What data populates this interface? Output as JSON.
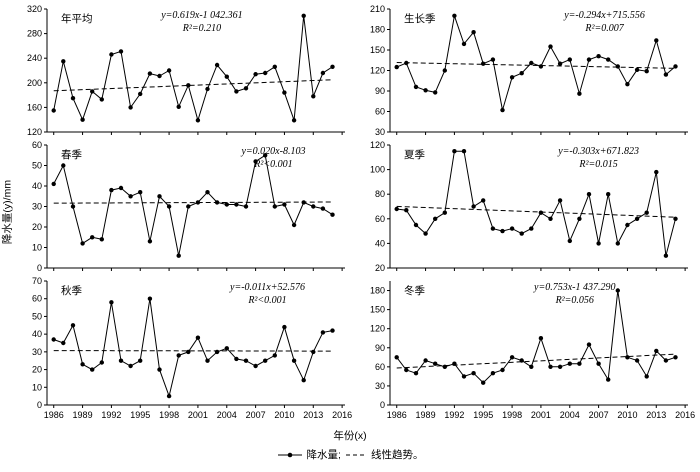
{
  "figure": {
    "ylabel": "降水量(y)/mm",
    "xlabel": "年份(x)",
    "legend": {
      "series1": "降水量;",
      "series2": "线性趋势。"
    },
    "accent_color": "#000000",
    "background_color": "#ffffff"
  },
  "chart_data": [
    {
      "type": "line",
      "title": "年平均",
      "equation": "y=0.619x-1 042.361",
      "r2": "R²=0.210",
      "x": [
        1986,
        1987,
        1988,
        1989,
        1990,
        1991,
        1992,
        1993,
        1994,
        1995,
        1996,
        1997,
        1998,
        1999,
        2000,
        2001,
        2002,
        2003,
        2004,
        2005,
        2006,
        2007,
        2008,
        2009,
        2010,
        2011,
        2012,
        2013,
        2014,
        2015
      ],
      "values": [
        155,
        235,
        175,
        140,
        186,
        173,
        246,
        251,
        160,
        182,
        215,
        211,
        220,
        161,
        196,
        139,
        190,
        229,
        210,
        186,
        191,
        214,
        216,
        226,
        184,
        139,
        309,
        178,
        216,
        226
      ],
      "trend": {
        "slope": 0.619,
        "intercept": -1042.361
      },
      "ylim": [
        120,
        320
      ],
      "yticks": [
        120,
        160,
        200,
        240,
        280,
        320
      ],
      "xlim": [
        1985.3,
        2016.3
      ],
      "xticks": [
        1986,
        1989,
        1992,
        1995,
        1998,
        2001,
        2004,
        2007,
        2010,
        2013,
        2016
      ],
      "show_xlabels": false,
      "eq_x": 0.52
    },
    {
      "type": "line",
      "title": "生长季",
      "equation": "y=-0.294x+715.556",
      "r2": "R²=0.007",
      "x": [
        1986,
        1987,
        1988,
        1989,
        1990,
        1991,
        1992,
        1993,
        1994,
        1995,
        1996,
        1997,
        1998,
        1999,
        2000,
        2001,
        2002,
        2003,
        2004,
        2005,
        2006,
        2007,
        2008,
        2009,
        2010,
        2011,
        2012,
        2013,
        2014,
        2015
      ],
      "values": [
        125,
        131,
        96,
        91,
        88,
        120,
        200,
        159,
        176,
        130,
        136,
        62,
        110,
        116,
        131,
        126,
        155,
        130,
        136,
        86,
        136,
        141,
        136,
        126,
        100,
        121,
        119,
        164,
        114,
        126
      ],
      "trend": {
        "slope": -0.294,
        "intercept": 715.556
      },
      "ylim": [
        30,
        210
      ],
      "yticks": [
        30,
        60,
        90,
        120,
        150,
        180,
        210
      ],
      "xlim": [
        1985.3,
        2016.3
      ],
      "xticks": [
        1986,
        1989,
        1992,
        1995,
        1998,
        2001,
        2004,
        2007,
        2010,
        2013,
        2016
      ],
      "show_xlabels": false,
      "eq_x": 0.72
    },
    {
      "type": "line",
      "title": "春季",
      "equation": "y=0.020x-8.103",
      "r2": "R²<0.001",
      "x": [
        1986,
        1987,
        1988,
        1989,
        1990,
        1991,
        1992,
        1993,
        1994,
        1995,
        1996,
        1997,
        1998,
        1999,
        2000,
        2001,
        2002,
        2003,
        2004,
        2005,
        2006,
        2007,
        2008,
        2009,
        2010,
        2011,
        2012,
        2013,
        2014,
        2015
      ],
      "values": [
        41,
        50,
        30,
        12,
        15,
        14,
        38,
        39,
        35,
        37,
        13,
        35,
        30,
        6,
        30,
        32,
        37,
        32,
        31,
        31,
        30,
        52,
        55,
        30,
        31,
        21,
        32,
        30,
        29,
        26
      ],
      "trend": {
        "slope": 0.02,
        "intercept": -8.103
      },
      "ylim": [
        0,
        60
      ],
      "yticks": [
        0,
        10,
        20,
        30,
        40,
        50,
        60
      ],
      "xlim": [
        1985.3,
        2016.3
      ],
      "xticks": [
        1986,
        1989,
        1992,
        1995,
        1998,
        2001,
        2004,
        2007,
        2010,
        2013,
        2016
      ],
      "show_xlabels": false,
      "eq_x": 0.76
    },
    {
      "type": "line",
      "title": "夏季",
      "equation": "y=-0.303x+671.823",
      "r2": "R²=0.015",
      "x": [
        1986,
        1987,
        1988,
        1989,
        1990,
        1991,
        1992,
        1993,
        1994,
        1995,
        1996,
        1997,
        1998,
        1999,
        2000,
        2001,
        2002,
        2003,
        2004,
        2005,
        2006,
        2007,
        2008,
        2009,
        2010,
        2011,
        2012,
        2013,
        2014,
        2015
      ],
      "values": [
        68,
        67,
        55,
        48,
        60,
        65,
        115,
        115,
        70,
        75,
        52,
        50,
        52,
        48,
        52,
        65,
        60,
        75,
        42,
        60,
        80,
        40,
        80,
        40,
        55,
        60,
        65,
        98,
        30,
        60
      ],
      "trend": {
        "slope": -0.303,
        "intercept": 671.823
      },
      "ylim": [
        20,
        120
      ],
      "yticks": [
        20,
        40,
        60,
        80,
        100,
        120
      ],
      "xlim": [
        1985.3,
        2016.3
      ],
      "xticks": [
        1986,
        1989,
        1992,
        1995,
        1998,
        2001,
        2004,
        2007,
        2010,
        2013,
        2016
      ],
      "show_xlabels": false,
      "eq_x": 0.7
    },
    {
      "type": "line",
      "title": "秋季",
      "equation": "y=-0.011x+52.576",
      "r2": "R²<0.001",
      "x": [
        1986,
        1987,
        1988,
        1989,
        1990,
        1991,
        1992,
        1993,
        1994,
        1995,
        1996,
        1997,
        1998,
        1999,
        2000,
        2001,
        2002,
        2003,
        2004,
        2005,
        2006,
        2007,
        2008,
        2009,
        2010,
        2011,
        2012,
        2013,
        2014,
        2015
      ],
      "values": [
        37,
        35,
        45,
        23,
        20,
        24,
        58,
        25,
        22,
        25,
        60,
        20,
        5,
        28,
        30,
        38,
        25,
        30,
        32,
        26,
        25,
        22,
        25,
        28,
        44,
        25,
        14,
        30,
        41,
        42
      ],
      "trend": {
        "slope": -0.011,
        "intercept": 52.576
      },
      "ylim": [
        0,
        70
      ],
      "yticks": [
        0,
        10,
        20,
        30,
        40,
        50,
        60,
        70
      ],
      "xlim": [
        1985.3,
        2016.3
      ],
      "xticks": [
        1986,
        1989,
        1992,
        1995,
        1998,
        2001,
        2004,
        2007,
        2010,
        2013,
        2016
      ],
      "show_xlabels": true,
      "eq_x": 0.74
    },
    {
      "type": "line",
      "title": "冬季",
      "equation": "y=0.753x-1 437.290",
      "r2": "R²=0.056",
      "x": [
        1986,
        1987,
        1988,
        1989,
        1990,
        1991,
        1992,
        1993,
        1994,
        1995,
        1996,
        1997,
        1998,
        1999,
        2000,
        2001,
        2002,
        2003,
        2004,
        2005,
        2006,
        2007,
        2008,
        2009,
        2010,
        2011,
        2012,
        2013,
        2014,
        2015
      ],
      "values": [
        75,
        55,
        50,
        70,
        65,
        60,
        65,
        45,
        50,
        35,
        50,
        55,
        75,
        70,
        60,
        105,
        60,
        60,
        65,
        65,
        95,
        65,
        40,
        180,
        75,
        70,
        45,
        85,
        70,
        75
      ],
      "trend": {
        "slope": 0.753,
        "intercept": -1437.29
      },
      "ylim": [
        0,
        195
      ],
      "yticks": [
        0,
        30,
        60,
        90,
        120,
        150,
        180
      ],
      "xlim": [
        1985.3,
        2016.3
      ],
      "xticks": [
        1986,
        1989,
        1992,
        1995,
        1998,
        2001,
        2004,
        2007,
        2010,
        2013,
        2016
      ],
      "show_xlabels": true,
      "eq_x": 0.62
    }
  ]
}
